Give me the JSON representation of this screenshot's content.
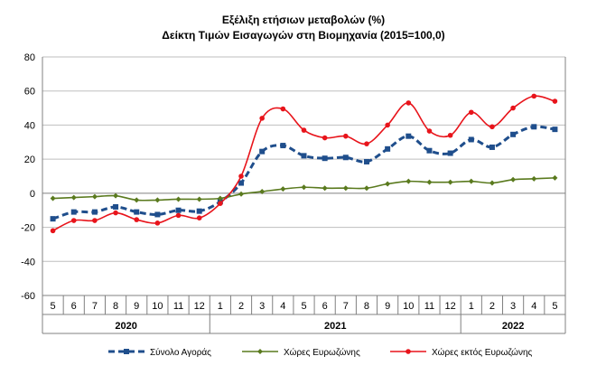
{
  "chart_data": {
    "type": "line",
    "title": "Εξέλιξη ετήσιων μεταβολών (%)",
    "subtitle": "Δείκτη Τιμών Εισαγωγών στη Βιομηχανία (2015=100,0)",
    "xlabel": "",
    "ylabel": "",
    "ylim": [
      -60,
      80
    ],
    "yticks": [
      "80",
      "60",
      "40",
      "20",
      "0",
      "-20",
      "-40",
      "-60"
    ],
    "categories": [
      "5",
      "6",
      "7",
      "8",
      "9",
      "10",
      "11",
      "12",
      "1",
      "2",
      "3",
      "4",
      "5",
      "6",
      "7",
      "8",
      "9",
      "10",
      "11",
      "12",
      "1",
      "2",
      "3",
      "4",
      "5"
    ],
    "year_groups": [
      {
        "label": "2020",
        "span": 8
      },
      {
        "label": "2021",
        "span": 12
      },
      {
        "label": "2022",
        "span": 5
      }
    ],
    "grid": true,
    "legend_position": "bottom",
    "series": [
      {
        "name": "Σύνολο Αγοράς",
        "color": "#1f4e8c",
        "style": "dashed-square",
        "values": [
          -15,
          -11,
          -11,
          -8,
          -11,
          -12.5,
          -10,
          -10.5,
          -5,
          6,
          24.5,
          28,
          22,
          20.5,
          21,
          18.5,
          26,
          33.5,
          25,
          23.5,
          31.5,
          27,
          34.5,
          39,
          37.5
        ]
      },
      {
        "name": "Χώρες Ευρωζώνης",
        "color": "#5a7a1e",
        "style": "solid-diamond",
        "values": [
          -3,
          -2.5,
          -2,
          -1.5,
          -4,
          -4,
          -3.5,
          -3.5,
          -3,
          -0.5,
          1,
          2.5,
          3.5,
          3,
          3,
          3,
          5.5,
          7,
          6.5,
          6.5,
          7,
          6,
          8,
          8.5,
          9
        ]
      },
      {
        "name": "Χώρες εκτός Ευρωζώνης",
        "color": "#e8141b",
        "style": "solid-circle",
        "values": [
          -22,
          -16,
          -16,
          -11.5,
          -15.5,
          -17.5,
          -13,
          -14.5,
          -6,
          10,
          44,
          49.5,
          37,
          32.5,
          33.5,
          29,
          40,
          53,
          36.5,
          34,
          47.5,
          39,
          50,
          57,
          54
        ]
      }
    ]
  }
}
